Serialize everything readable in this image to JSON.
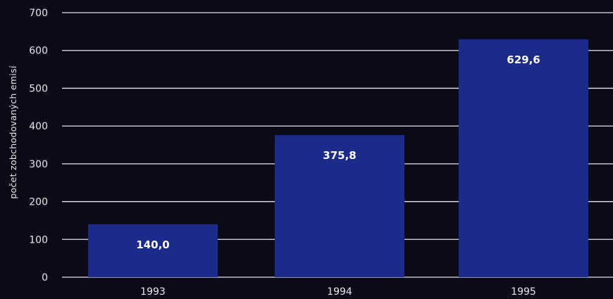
{
  "chart_data": {
    "type": "bar",
    "title": "",
    "xlabel": "",
    "ylabel": "počet zobchodovaných emisí",
    "categories": [
      "1993",
      "1994",
      "1995"
    ],
    "values": [
      140.0,
      375.8,
      629.6
    ],
    "value_labels": [
      "140,0",
      "375,8",
      "629,6"
    ],
    "ylim": [
      0,
      700
    ],
    "yticks": [
      0,
      100,
      200,
      300,
      400,
      500,
      600,
      700
    ],
    "ytick_labels": [
      "0",
      "100",
      "200",
      "300",
      "400",
      "500",
      "600",
      "700"
    ],
    "grid": true,
    "legend": "none",
    "colors": {
      "background": "#0b0b17",
      "bar": "#1c2a8a",
      "grid": "#e6e6ee",
      "text": "#e6e6ee",
      "data_label": "#ffffff"
    }
  }
}
